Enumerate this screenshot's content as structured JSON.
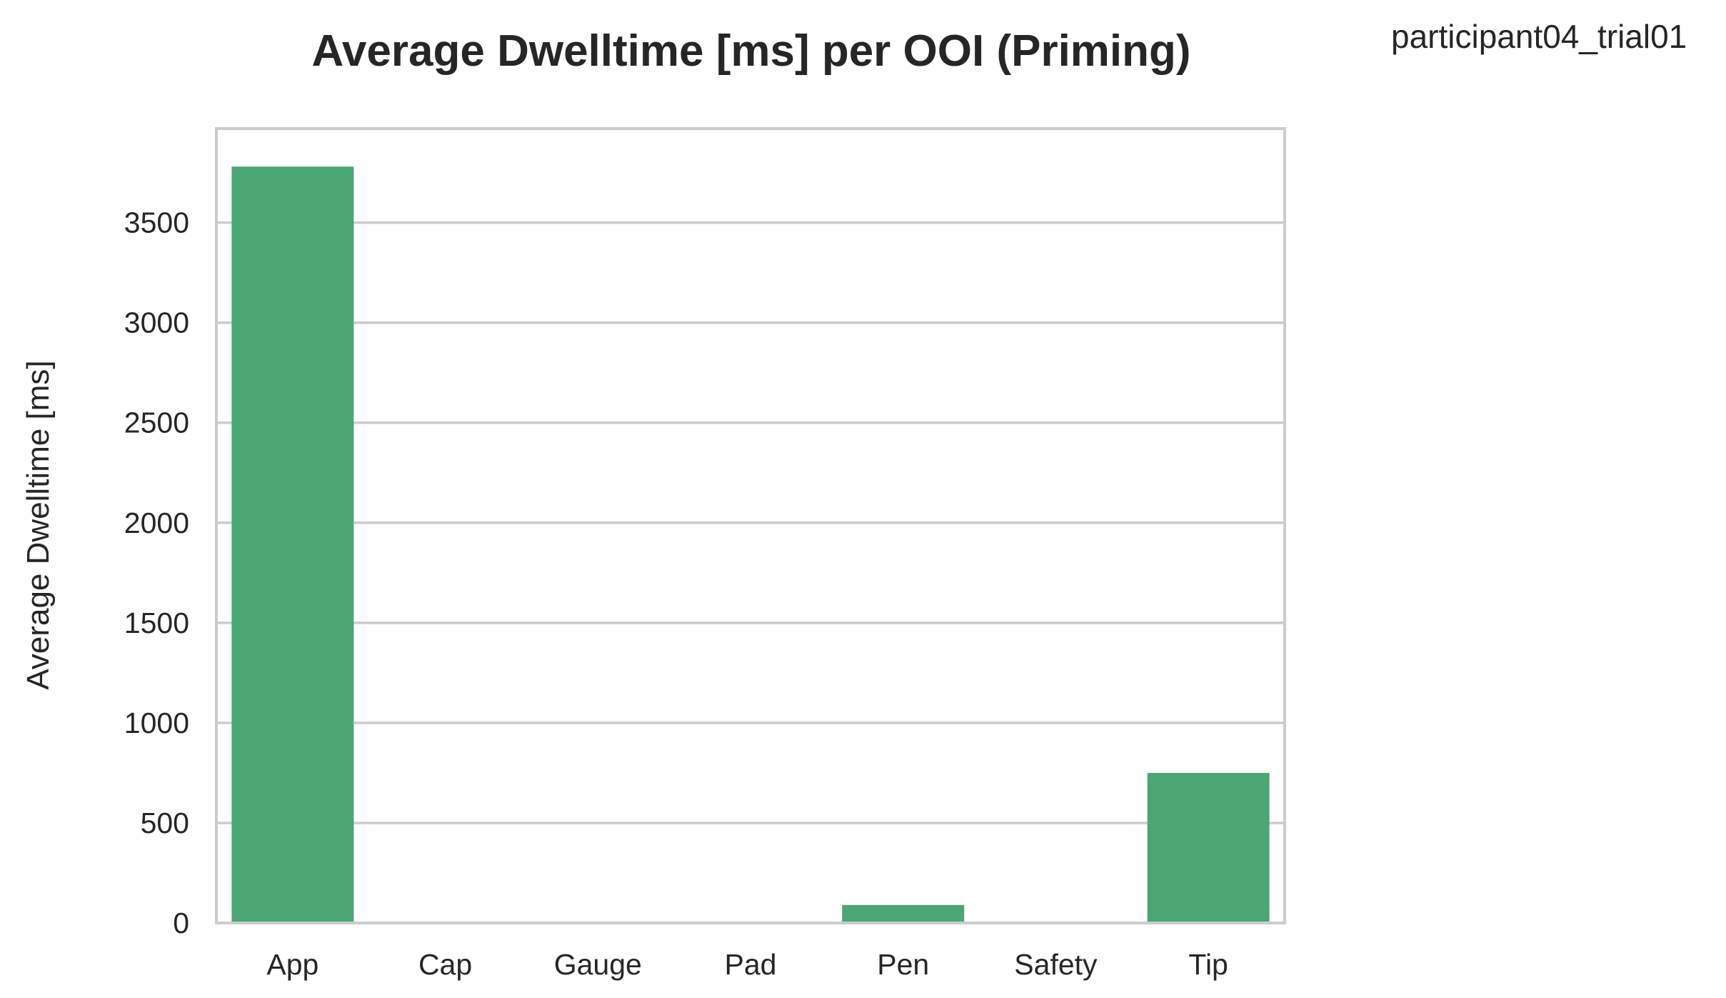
{
  "chart_data": {
    "type": "bar",
    "title": "Average Dwelltime [ms] per OOI (Priming)",
    "annotation": "participant04_trial01",
    "xlabel": "",
    "ylabel": "Average Dwelltime [ms]",
    "categories": [
      "App",
      "Cap",
      "Gauge",
      "Pad",
      "Pen",
      "Safety",
      "Tip"
    ],
    "values": [
      3780,
      0,
      0,
      0,
      90,
      0,
      750
    ],
    "ylim": [
      0,
      3970
    ],
    "yticks": [
      0,
      500,
      1000,
      1500,
      2000,
      2500,
      3000,
      3500
    ],
    "ytick_labels": [
      "0",
      "500",
      "1000",
      "1500",
      "2000",
      "2500",
      "3000",
      "3500"
    ],
    "grid": "horizontal",
    "legend": "none",
    "bar_color": "#4ca574",
    "grid_color": "#cccccc",
    "text_color": "#262626"
  }
}
